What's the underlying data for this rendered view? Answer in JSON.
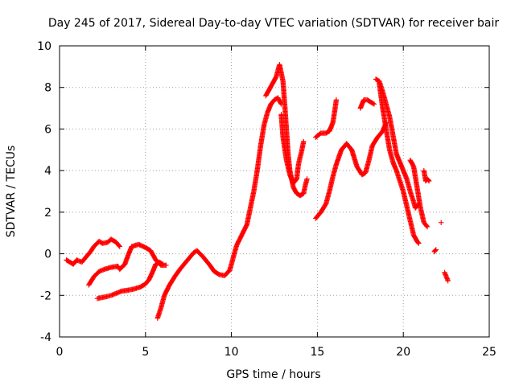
{
  "chart_data": {
    "type": "scatter",
    "title": "Day 245 of 2017, Sidereal Day-to-day VTEC variation (SDTVAR) for receiver bair",
    "xlabel": "GPS time / hours",
    "ylabel": "SDTVAR / TECUs",
    "xlim": [
      0,
      25
    ],
    "ylim": [
      -4,
      10
    ],
    "xticks": [
      0,
      5,
      10,
      15,
      20,
      25
    ],
    "yticks": [
      -4,
      -2,
      0,
      2,
      4,
      6,
      8,
      10
    ],
    "grid": true,
    "marker": "+",
    "marker_color": "#ff0000",
    "series": [
      {
        "name": "SDTVAR",
        "segments": [
          [
            [
              0.4,
              -0.3
            ],
            [
              0.8,
              -0.5
            ],
            [
              1.0,
              -0.3
            ],
            [
              1.3,
              -0.4
            ],
            [
              1.5,
              -0.2
            ],
            [
              1.8,
              0.1
            ],
            [
              2.0,
              0.35
            ],
            [
              2.3,
              0.6
            ],
            [
              2.5,
              0.5
            ],
            [
              2.8,
              0.55
            ],
            [
              3.0,
              0.7
            ],
            [
              3.3,
              0.55
            ],
            [
              3.5,
              0.35
            ]
          ],
          [
            [
              1.7,
              -1.5
            ],
            [
              2.0,
              -1.1
            ],
            [
              2.3,
              -0.85
            ],
            [
              2.6,
              -0.75
            ],
            [
              3.0,
              -0.65
            ],
            [
              3.4,
              -0.6
            ],
            [
              3.5,
              -0.75
            ],
            [
              3.8,
              -0.5
            ],
            [
              4.0,
              -0.05
            ],
            [
              4.2,
              0.35
            ],
            [
              4.6,
              0.45
            ],
            [
              5.0,
              0.3
            ],
            [
              5.3,
              0.15
            ],
            [
              5.6,
              -0.3
            ],
            [
              5.9,
              -0.55
            ],
            [
              6.2,
              -0.55
            ]
          ],
          [
            [
              2.2,
              -2.15
            ],
            [
              2.5,
              -2.1
            ],
            [
              2.8,
              -2.05
            ],
            [
              3.0,
              -2.0
            ],
            [
              3.3,
              -1.9
            ],
            [
              3.6,
              -1.8
            ],
            [
              4.0,
              -1.75
            ],
            [
              4.3,
              -1.7
            ],
            [
              4.7,
              -1.6
            ],
            [
              5.0,
              -1.45
            ],
            [
              5.2,
              -1.25
            ],
            [
              5.4,
              -0.9
            ],
            [
              5.6,
              -0.5
            ],
            [
              5.8,
              -0.4
            ],
            [
              6.0,
              -0.5
            ]
          ],
          [
            [
              5.7,
              -3.1
            ],
            [
              5.9,
              -2.6
            ],
            [
              6.1,
              -2.0
            ],
            [
              6.4,
              -1.5
            ],
            [
              6.7,
              -1.1
            ],
            [
              7.0,
              -0.75
            ],
            [
              7.4,
              -0.35
            ],
            [
              7.8,
              0.05
            ],
            [
              8.0,
              0.15
            ],
            [
              8.3,
              -0.1
            ],
            [
              8.7,
              -0.5
            ],
            [
              9.0,
              -0.85
            ],
            [
              9.3,
              -1.0
            ],
            [
              9.6,
              -1.05
            ],
            [
              9.9,
              -0.8
            ],
            [
              10.1,
              -0.2
            ],
            [
              10.3,
              0.4
            ],
            [
              10.6,
              0.9
            ],
            [
              10.9,
              1.4
            ],
            [
              11.1,
              2.2
            ],
            [
              11.3,
              3.0
            ],
            [
              11.5,
              4.0
            ],
            [
              11.7,
              5.2
            ],
            [
              11.9,
              6.2
            ],
            [
              12.1,
              6.8
            ],
            [
              12.3,
              7.2
            ],
            [
              12.5,
              7.4
            ],
            [
              12.7,
              7.5
            ],
            [
              12.9,
              7.2
            ]
          ],
          [
            [
              12.0,
              7.6
            ],
            [
              12.2,
              7.9
            ],
            [
              12.4,
              8.2
            ],
            [
              12.6,
              8.5
            ],
            [
              12.8,
              9.1
            ],
            [
              13.0,
              8.3
            ],
            [
              13.1,
              7.2
            ],
            [
              13.2,
              6.0
            ],
            [
              13.3,
              4.8
            ],
            [
              13.4,
              4.0
            ],
            [
              13.6,
              3.2
            ],
            [
              13.8,
              2.9
            ],
            [
              14.0,
              2.8
            ],
            [
              14.2,
              2.9
            ],
            [
              14.3,
              3.3
            ],
            [
              14.4,
              3.6
            ]
          ],
          [
            [
              12.9,
              6.7
            ],
            [
              13.0,
              5.6
            ],
            [
              13.2,
              4.5
            ],
            [
              13.4,
              3.8
            ],
            [
              13.6,
              3.4
            ],
            [
              13.8,
              3.6
            ],
            [
              13.9,
              4.3
            ],
            [
              14.1,
              5.0
            ],
            [
              14.2,
              5.4
            ]
          ],
          [
            [
              14.9,
              1.7
            ],
            [
              15.2,
              2.0
            ],
            [
              15.5,
              2.4
            ],
            [
              15.7,
              3.0
            ],
            [
              15.9,
              3.7
            ],
            [
              16.1,
              4.3
            ],
            [
              16.4,
              5.0
            ],
            [
              16.7,
              5.3
            ],
            [
              17.0,
              5.0
            ],
            [
              17.3,
              4.2
            ],
            [
              17.6,
              3.8
            ],
            [
              17.8,
              3.9
            ],
            [
              18.0,
              4.5
            ],
            [
              18.2,
              5.2
            ],
            [
              18.5,
              5.6
            ],
            [
              18.8,
              5.9
            ],
            [
              19.0,
              6.3
            ]
          ],
          [
            [
              14.9,
              5.6
            ],
            [
              15.2,
              5.8
            ],
            [
              15.5,
              5.8
            ],
            [
              15.7,
              5.9
            ],
            [
              15.9,
              6.3
            ],
            [
              16.0,
              6.8
            ],
            [
              16.1,
              7.4
            ]
          ],
          [
            [
              17.5,
              7.0
            ],
            [
              17.7,
              7.4
            ],
            [
              17.9,
              7.4
            ],
            [
              18.1,
              7.3
            ],
            [
              18.3,
              7.2
            ]
          ],
          [
            [
              18.4,
              8.4
            ],
            [
              18.6,
              8.3
            ],
            [
              18.8,
              7.8
            ],
            [
              19.0,
              7.2
            ],
            [
              19.2,
              6.6
            ],
            [
              19.4,
              5.7
            ],
            [
              19.6,
              4.8
            ],
            [
              19.8,
              4.4
            ],
            [
              20.0,
              4.0
            ],
            [
              20.2,
              3.6
            ],
            [
              20.4,
              3.0
            ],
            [
              20.6,
              2.5
            ],
            [
              20.7,
              2.2
            ],
            [
              20.9,
              2.4
            ]
          ],
          [
            [
              18.6,
              8.2
            ],
            [
              18.8,
              7.0
            ],
            [
              19.0,
              6.0
            ],
            [
              19.2,
              5.0
            ],
            [
              19.4,
              4.4
            ],
            [
              19.6,
              4.0
            ],
            [
              19.8,
              3.5
            ],
            [
              20.0,
              3.0
            ],
            [
              20.2,
              2.3
            ],
            [
              20.4,
              1.6
            ],
            [
              20.6,
              0.9
            ],
            [
              20.8,
              0.6
            ],
            [
              20.9,
              0.5
            ]
          ],
          [
            [
              20.4,
              4.5
            ],
            [
              20.6,
              4.2
            ],
            [
              20.8,
              3.2
            ],
            [
              21.0,
              2.2
            ],
            [
              21.2,
              1.5
            ],
            [
              21.4,
              1.3
            ]
          ],
          [
            [
              21.2,
              4.0
            ],
            [
              21.3,
              3.5
            ],
            [
              21.4,
              3.6
            ],
            [
              21.5,
              3.5
            ]
          ],
          [
            [
              21.8,
              0.1
            ],
            [
              21.9,
              0.2
            ]
          ],
          [
            [
              22.2,
              1.5
            ]
          ],
          [
            [
              22.4,
              -0.9
            ],
            [
              22.5,
              -1.1
            ],
            [
              22.6,
              -1.3
            ]
          ]
        ]
      }
    ]
  }
}
